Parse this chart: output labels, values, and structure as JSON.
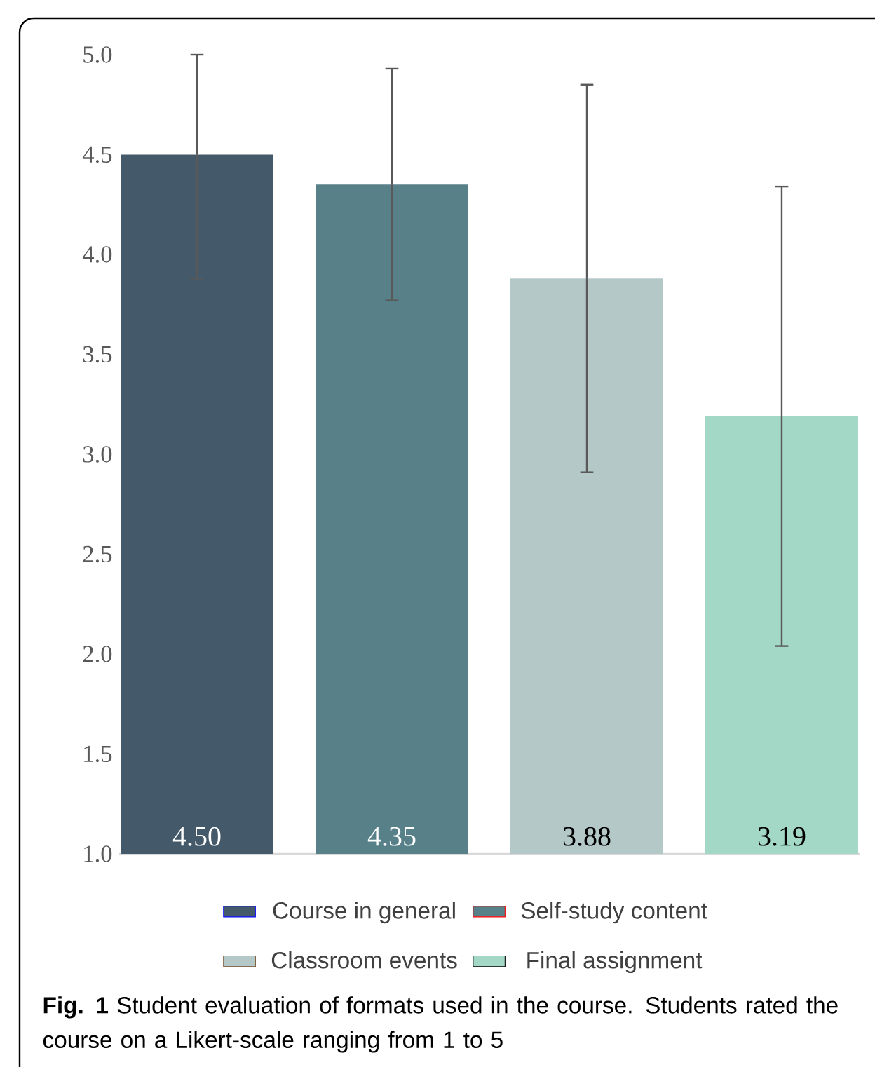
{
  "chart_data": {
    "type": "bar",
    "categories": [
      null
    ],
    "series": [
      {
        "name": "Course in general",
        "color": "#44596a",
        "values": [
          4.5
        ],
        "errors": [
          [
            3.88,
            5.0
          ]
        ],
        "value_labels": [
          "4.50"
        ]
      },
      {
        "name": "Self-study content",
        "color": "#578089",
        "values": [
          4.35
        ],
        "errors": [
          0.58
        ],
        "value_labels": [
          "4.35"
        ]
      },
      {
        "name": "Classroom events",
        "color": "#b4c8c8",
        "values": [
          3.88
        ],
        "errors": [
          0.97
        ],
        "value_labels": [
          "3.88"
        ]
      },
      {
        "name": "Final assignment",
        "color": "#a3d8c6",
        "values": [
          3.19
        ],
        "errors": [
          1.15
        ],
        "value_labels": [
          "3.19"
        ]
      }
    ],
    "ylim": [
      1.0,
      5.0
    ],
    "yticks": [
      {
        "value": 1.0,
        "label": "1.0"
      },
      {
        "value": 1.5,
        "label": "1.5"
      },
      {
        "value": 2.0,
        "label": "2.0"
      },
      {
        "value": 2.5,
        "label": "2.5"
      },
      {
        "value": 3.0,
        "label": "3.0"
      },
      {
        "value": 3.5,
        "label": "3.5"
      },
      {
        "value": 4.0,
        "label": "4.0"
      },
      {
        "value": 4.5,
        "label": "4.5"
      },
      {
        "value": 5.0,
        "label": "5.0"
      }
    ],
    "tick_labels": "y",
    "grid": false,
    "legend": "bottom",
    "annotations": [
      "**Fig. 1** Student evaluation of formats used in the course. Students rated the course on a Likert-scale ranging from 1 to 5"
    ]
  }
}
